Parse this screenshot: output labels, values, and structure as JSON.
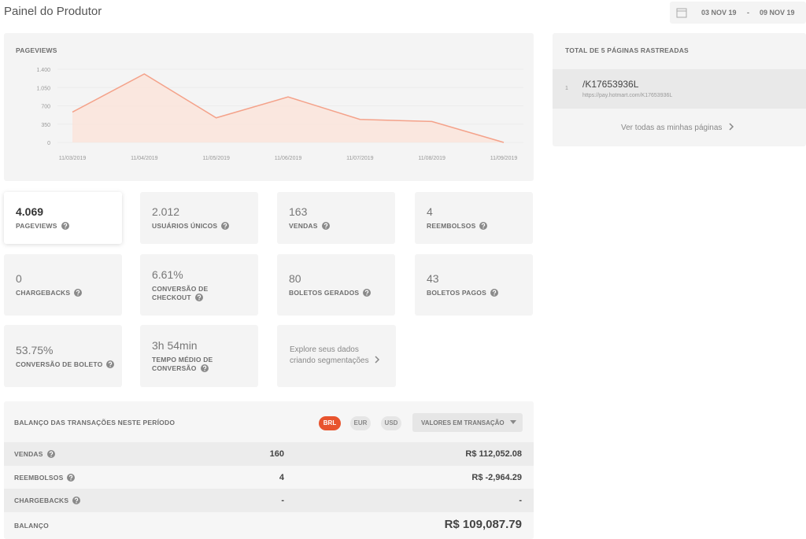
{
  "header": {
    "title": "Painel do Produtor",
    "date_start": "03 NOV 19",
    "date_separator": "-",
    "date_end": "09 NOV 19"
  },
  "chart_data": {
    "type": "line",
    "title": "PAGEVIEWS",
    "categories": [
      "11/03/2019",
      "11/04/2019",
      "11/05/2019",
      "11/06/2019",
      "11/07/2019",
      "11/08/2019",
      "11/09/2019"
    ],
    "values": [
      580,
      1310,
      470,
      870,
      440,
      400,
      0
    ],
    "color": "#f4a28a",
    "ylim": [
      0,
      1400
    ],
    "yticks": [
      0,
      350,
      700,
      {
        "value": 1050,
        "label": "1.050"
      },
      {
        "value": 1400,
        "label": "1.400"
      }
    ],
    "grid": true
  },
  "pages": {
    "title": "TOTAL DE 5 PÁGINAS RASTREADAS",
    "items": [
      {
        "index": "1",
        "path": "/K17653936L",
        "url": "https://pay.hotmart.com/K17653936L"
      }
    ],
    "link": "Ver todas as minhas páginas"
  },
  "metrics": [
    {
      "value": "4.069",
      "label": "PAGEVIEWS"
    },
    {
      "value": "2.012",
      "label": "USUÁRIOS ÚNICOS"
    },
    {
      "value": "163",
      "label": "VENDAS"
    },
    {
      "value": "4",
      "label": "REEMBOLSOS"
    },
    {
      "value": "0",
      "label": "CHARGEBACKS"
    },
    {
      "value": "6.61%",
      "label": "CONVERSÃO DE CHECKOUT"
    },
    {
      "value": "80",
      "label": "BOLETOS GERADOS"
    },
    {
      "value": "43",
      "label": "BOLETOS PAGOS"
    },
    {
      "value": "53.75%",
      "label": "CONVERSÃO DE BOLETO"
    },
    {
      "value": "3h 54min",
      "label": "TEMPO MÉDIO DE CONVERSÃO"
    }
  ],
  "explore": "Explore seus dados criando segmentações",
  "balance": {
    "title": "BALANÇO DAS TRANSAÇÕES NESTE PERÍODO",
    "currencies": [
      "BRL",
      "EUR",
      "USD"
    ],
    "active_currency": "BRL",
    "mode": "VALORES EM TRANSAÇÃO",
    "rows": [
      {
        "label": "VENDAS",
        "count": "160",
        "amount": "R$ 112,052.08"
      },
      {
        "label": "REEMBOLSOS",
        "count": "4",
        "amount": "R$ -2,964.29"
      },
      {
        "label": "CHARGEBACKS",
        "count": "-",
        "amount": "-"
      }
    ],
    "total": {
      "label": "BALANÇO",
      "amount": "R$ 109,087.79"
    }
  }
}
